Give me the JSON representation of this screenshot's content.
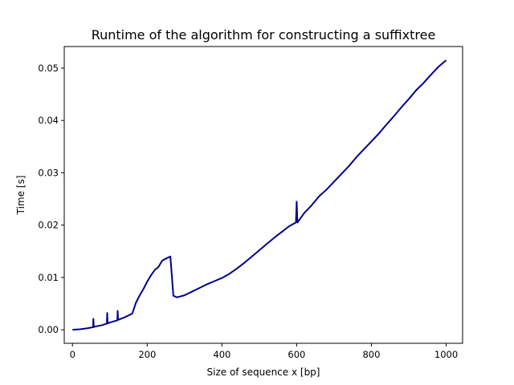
{
  "chart_data": {
    "type": "line",
    "title": "Runtime of the algorithm for constructing a suffixtree",
    "xlabel": "Size of sequence x [bp]",
    "ylabel": "Time [s]",
    "xlim": [
      -22,
      1044
    ],
    "ylim": [
      -0.00258,
      0.05413
    ],
    "xticks": [
      0,
      200,
      400,
      600,
      800,
      1000
    ],
    "yticks": [
      0.0,
      0.01,
      0.02,
      0.03,
      0.04,
      0.05
    ],
    "xtick_labels": [
      "0",
      "200",
      "400",
      "600",
      "800",
      "1000"
    ],
    "ytick_labels": [
      "0.00",
      "0.01",
      "0.02",
      "0.03",
      "0.04",
      "0.05"
    ],
    "grid": false,
    "line_color": "#00008b",
    "series": [
      {
        "x": [
          0,
          20,
          40,
          55,
          56,
          57,
          60,
          80,
          92,
          93,
          94,
          100,
          120,
          121,
          122,
          140,
          160,
          170,
          180,
          190,
          200,
          210,
          220,
          230,
          240,
          250,
          262,
          270,
          280,
          300,
          320,
          340,
          360,
          380,
          400,
          420,
          440,
          460,
          480,
          500,
          520,
          540,
          560,
          580,
          598,
          600,
          602,
          620,
          640,
          660,
          680,
          700,
          720,
          740,
          760,
          780,
          800,
          820,
          840,
          860,
          880,
          900,
          920,
          940,
          960,
          980,
          1000
        ],
        "y": [
          0.0,
          0.0001,
          0.0003,
          0.0005,
          0.0021,
          0.0005,
          0.0006,
          0.0009,
          0.0012,
          0.0032,
          0.0012,
          0.0014,
          0.0018,
          0.0036,
          0.0019,
          0.0024,
          0.0031,
          0.0052,
          0.0066,
          0.0078,
          0.0092,
          0.0104,
          0.0114,
          0.012,
          0.0132,
          0.0136,
          0.014,
          0.0065,
          0.0062,
          0.0066,
          0.0073,
          0.008,
          0.0087,
          0.0093,
          0.0099,
          0.0107,
          0.0117,
          0.0128,
          0.014,
          0.0152,
          0.0164,
          0.0176,
          0.0187,
          0.0198,
          0.0205,
          0.0245,
          0.0205,
          0.0223,
          0.0238,
          0.0255,
          0.0268,
          0.0283,
          0.0298,
          0.0313,
          0.033,
          0.0345,
          0.036,
          0.0375,
          0.0392,
          0.0408,
          0.0425,
          0.0441,
          0.0458,
          0.0472,
          0.0488,
          0.0503,
          0.0515
        ]
      }
    ]
  }
}
